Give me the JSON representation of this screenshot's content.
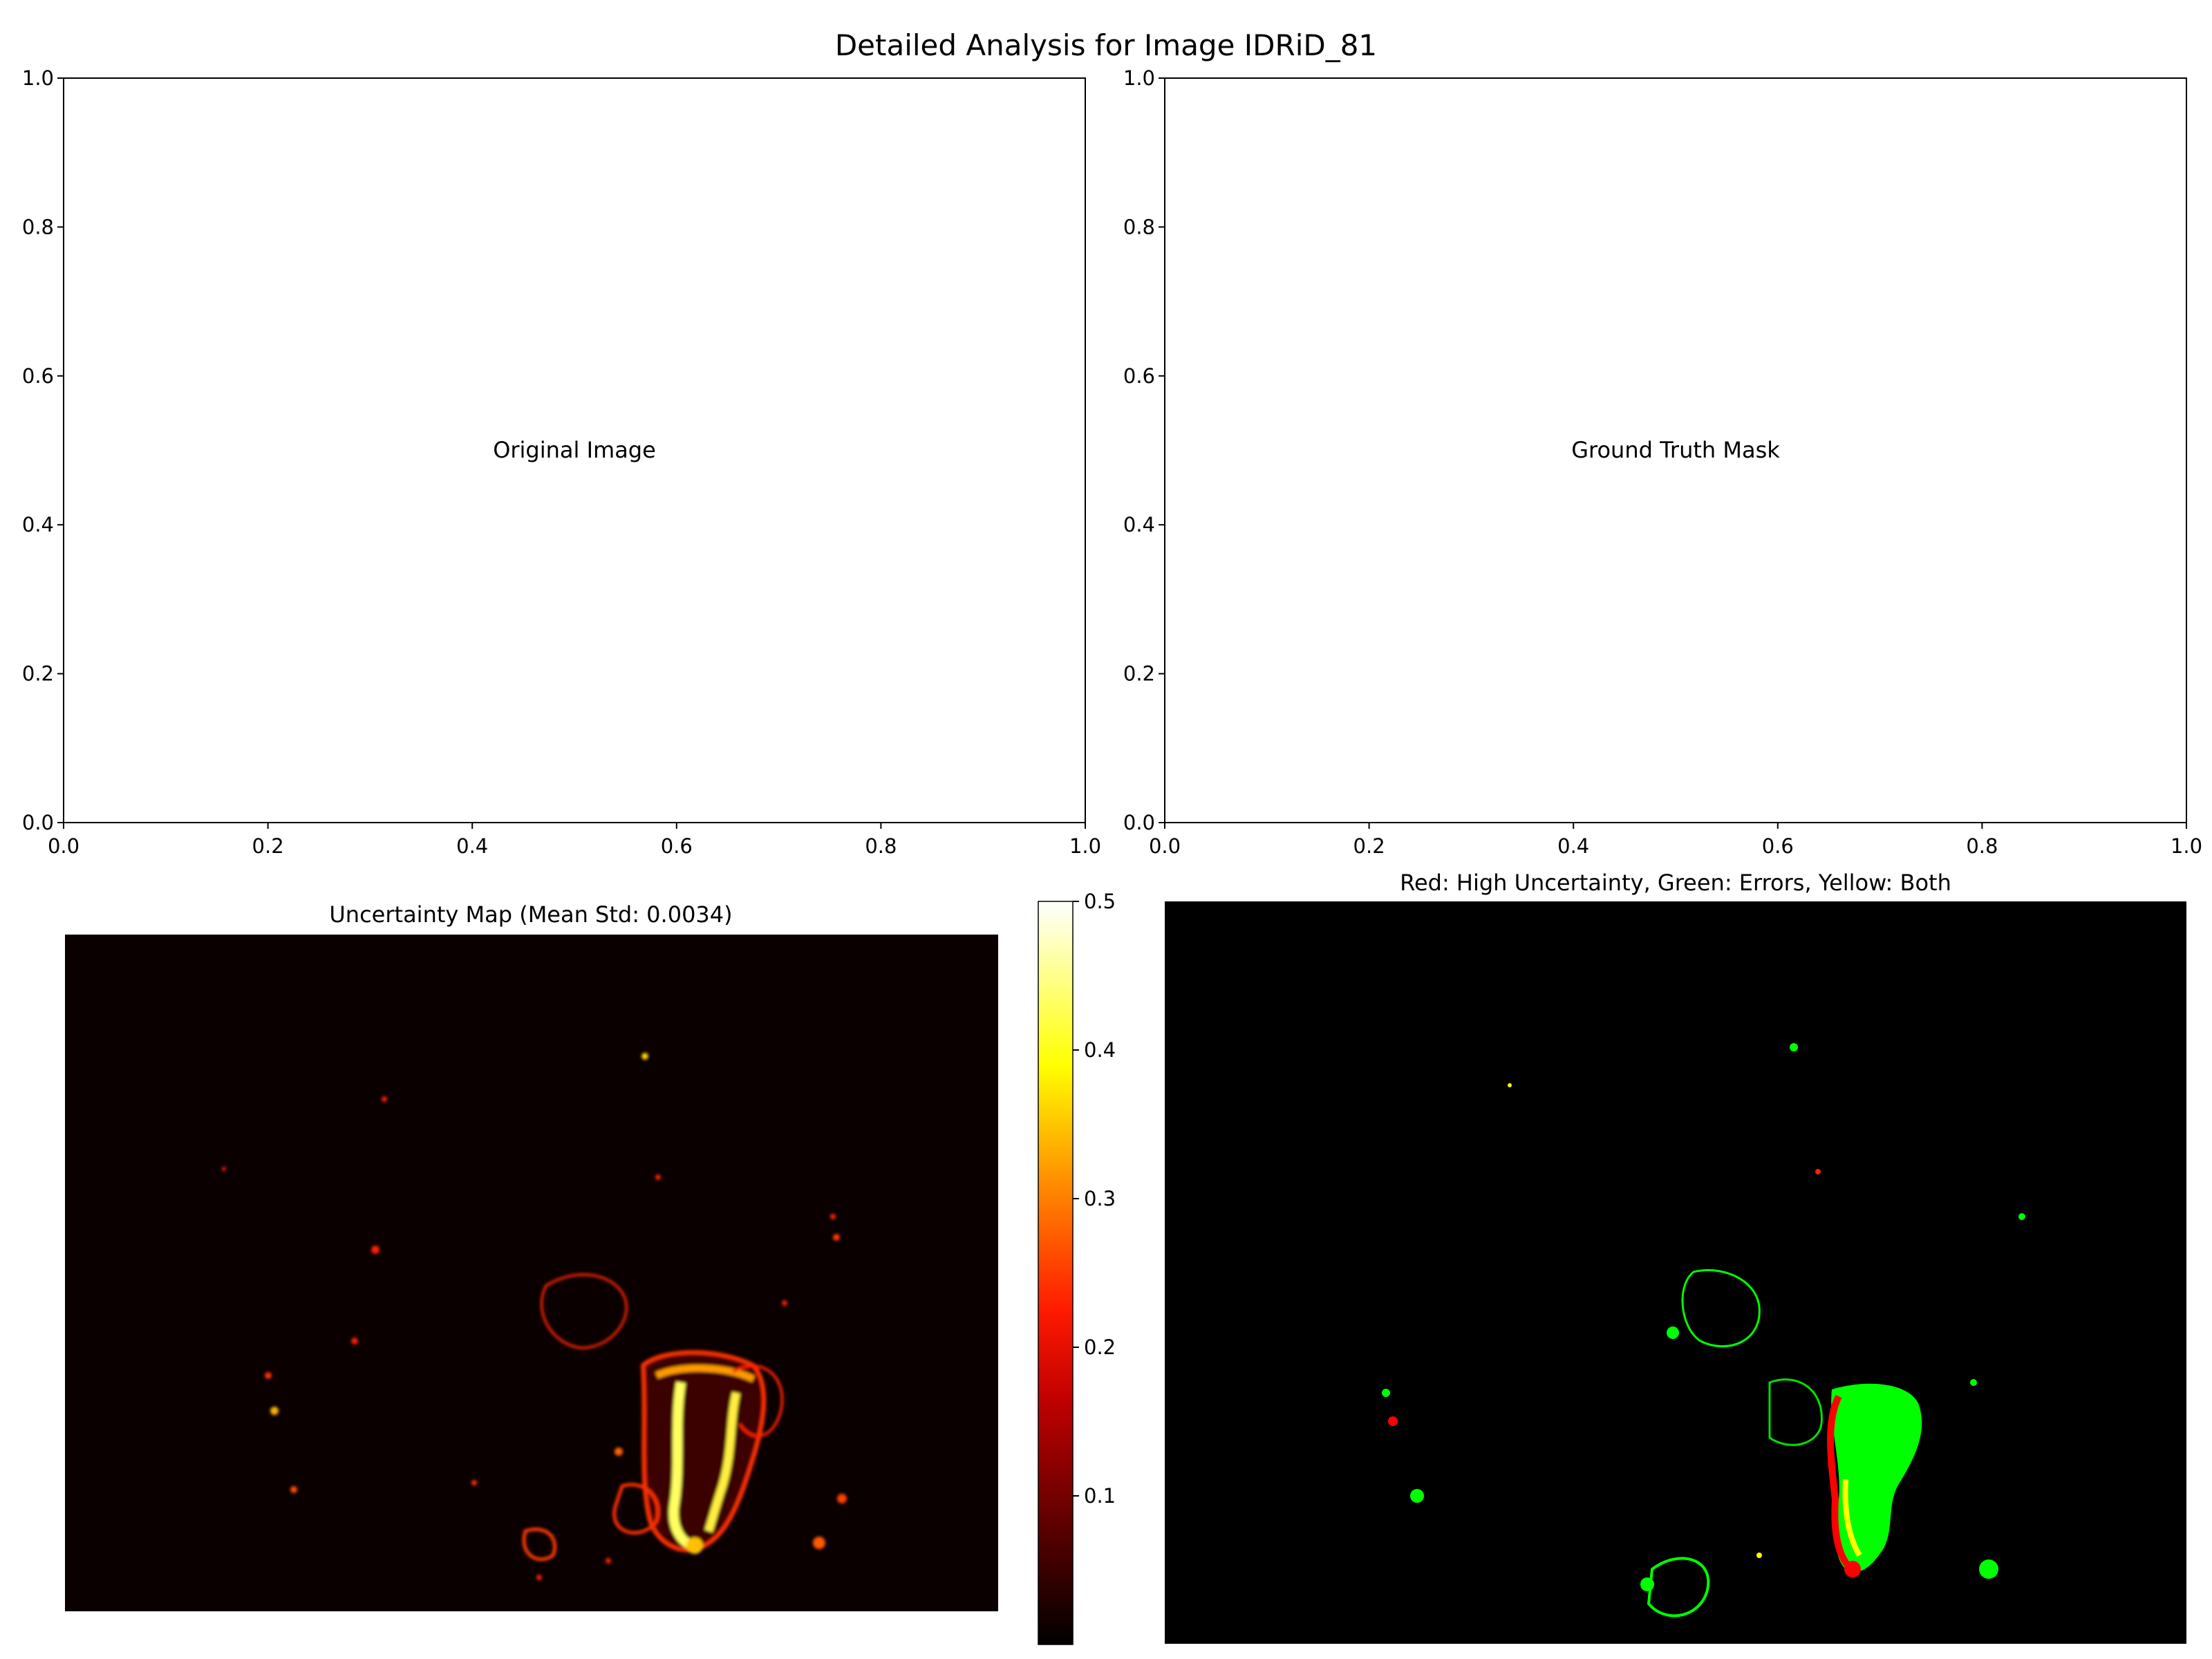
{
  "figure": {
    "title": "Detailed Analysis for Image IDRiD_81"
  },
  "panels": {
    "original": {
      "label": "Original Image"
    },
    "ground_truth": {
      "label": "Ground Truth Mask"
    },
    "uncertainty": {
      "title": "Uncertainty Map (Mean Std: 0.0034)",
      "colorbar_ticks": [
        "0.1",
        "0.2",
        "0.3",
        "0.4",
        "0.5"
      ]
    },
    "overlay": {
      "title": "Red: High Uncertainty, Green: Errors, Yellow: Both"
    }
  },
  "chart_data": [
    {
      "type": "scatter",
      "title": "",
      "text": "Original Image",
      "xlim": [
        0,
        1
      ],
      "ylim": [
        0,
        1
      ],
      "x_ticks": [
        "0.0",
        "0.2",
        "0.4",
        "0.6",
        "0.8",
        "1.0"
      ],
      "y_ticks": [
        "0.0",
        "0.2",
        "0.4",
        "0.6",
        "0.8",
        "1.0"
      ],
      "series": []
    },
    {
      "type": "scatter",
      "title": "",
      "text": "Ground Truth Mask",
      "xlim": [
        0,
        1
      ],
      "ylim": [
        0,
        1
      ],
      "x_ticks": [
        "0.0",
        "0.2",
        "0.4",
        "0.6",
        "0.8",
        "1.0"
      ],
      "y_ticks": [
        "0.0",
        "0.2",
        "0.4",
        "0.6",
        "0.8",
        "1.0"
      ],
      "series": []
    },
    {
      "type": "heatmap",
      "title": "Uncertainty Map (Mean Std: 0.0034)",
      "colormap": "hot",
      "colorbar_range": [
        0,
        0.5
      ],
      "colorbar_ticks": [
        0.1,
        0.2,
        0.3,
        0.4,
        0.5
      ],
      "colors": {
        "low": "#0b0000",
        "mid": "#ff2a00",
        "high": "#ffffff"
      }
    },
    {
      "type": "heatmap",
      "title": "Red: High Uncertainty, Green: Errors, Yellow: Both",
      "legend_colors": {
        "high_uncertainty": "#ff0000",
        "errors": "#00ff00",
        "both": "#ffff00",
        "background": "#000000"
      }
    }
  ]
}
